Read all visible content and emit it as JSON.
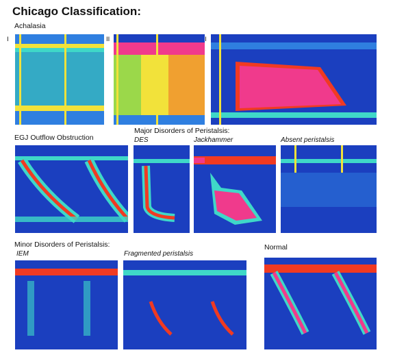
{
  "title": "Chicago Classification:",
  "sections": {
    "achalasia": "Achalasia",
    "egj": "EGJ Outflow Obstruction",
    "major": "Major Disorders of Peristalsis:",
    "minor": "Minor Disorders of Peristalsis:",
    "normal": "Normal"
  },
  "labels": {
    "type1": "I",
    "type2": "II",
    "type3": "III",
    "des": "DES",
    "jackhammer": "Jackhammer",
    "absent": "Absent peristalsis",
    "iem": "IEM",
    "fragmented": "Fragmented peristalsis"
  },
  "colors": {
    "background": "#1b3fbf",
    "low": "#2f7fe0",
    "mid": "#3fd8c8",
    "warm": "#f2e23a",
    "hot": "#f03a22",
    "peak": "#f03a8c"
  }
}
